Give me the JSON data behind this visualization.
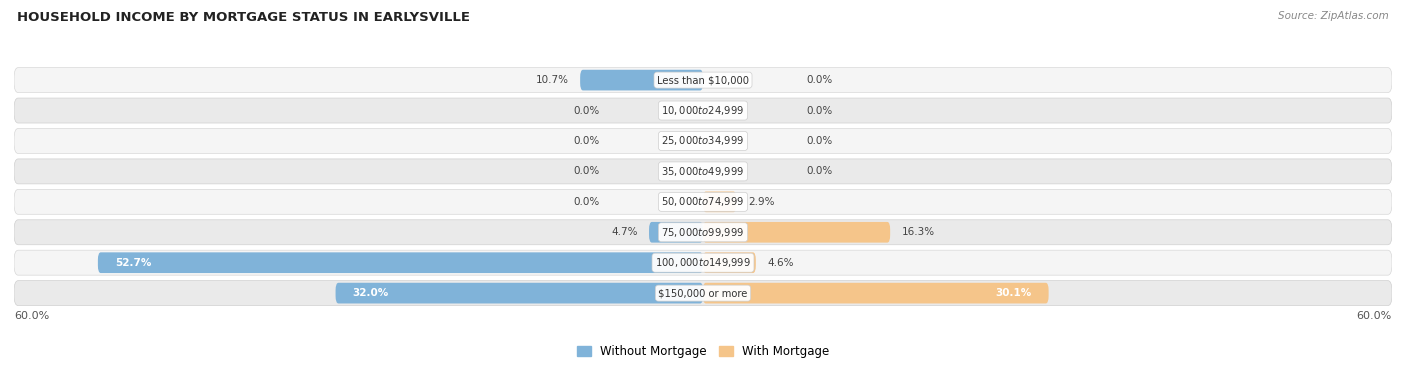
{
  "title": "HOUSEHOLD INCOME BY MORTGAGE STATUS IN EARLYSVILLE",
  "source": "Source: ZipAtlas.com",
  "categories": [
    "Less than $10,000",
    "$10,000 to $24,999",
    "$25,000 to $34,999",
    "$35,000 to $49,999",
    "$50,000 to $74,999",
    "$75,000 to $99,999",
    "$100,000 to $149,999",
    "$150,000 or more"
  ],
  "without_mortgage": [
    10.7,
    0.0,
    0.0,
    0.0,
    0.0,
    4.7,
    52.7,
    32.0
  ],
  "with_mortgage": [
    0.0,
    0.0,
    0.0,
    0.0,
    2.9,
    16.3,
    4.6,
    30.1
  ],
  "without_mortgage_color": "#80b3d9",
  "with_mortgage_color": "#f5c58a",
  "axis_max": 60.0,
  "legend_without": "Without Mortgage",
  "legend_with": "With Mortgage",
  "bg_color": "#ffffff",
  "row_bg_odd": "#f2f2f2",
  "row_bg_even": "#e6e6e6",
  "row_border": "#cccccc",
  "title_color": "#222222",
  "source_color": "#888888"
}
